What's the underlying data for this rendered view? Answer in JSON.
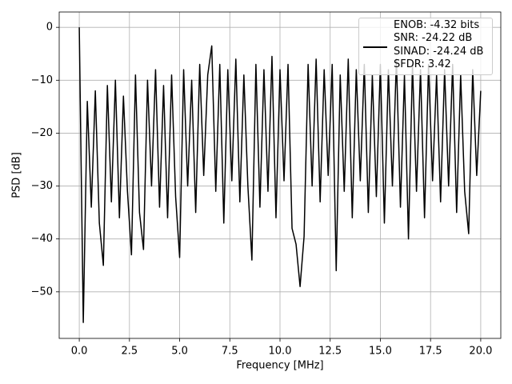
{
  "chart_data": {
    "type": "line",
    "x_label": "Frequency [MHz]",
    "y_label": "PSD [dB]",
    "xlim": [
      -1.0,
      21.0
    ],
    "ylim": [
      -58.8,
      2.9
    ],
    "xticks": [
      {
        "value": 0,
        "label": "0.0"
      },
      2.5,
      {
        "value": 5,
        "label": "5.0"
      },
      7.5,
      {
        "value": 10,
        "label": "10.0"
      },
      12.5,
      {
        "value": 15,
        "label": "15.0"
      },
      17.5,
      {
        "value": 20,
        "label": "20.0"
      }
    ],
    "yticks": [
      {
        "value": 0,
        "label": "0"
      },
      {
        "value": -10,
        "label": "−10"
      },
      {
        "value": -20,
        "label": "−20"
      },
      {
        "value": -30,
        "label": "−30"
      },
      {
        "value": -40,
        "label": "−40"
      },
      {
        "value": -50,
        "label": "−50"
      }
    ],
    "grid": true,
    "legend": "upper right",
    "x": [
      0,
      0.2,
      0.4,
      0.6,
      0.8,
      1.0,
      1.2,
      1.4,
      1.6,
      1.8,
      2.0,
      2.2,
      2.4,
      2.6,
      2.8,
      3.0,
      3.2,
      3.4,
      3.6,
      3.8,
      4.0,
      4.2,
      4.4,
      4.6,
      4.8,
      5.0,
      5.2,
      5.4,
      5.6,
      5.8,
      6.0,
      6.2,
      6.4,
      6.6,
      6.8,
      7.0,
      7.2,
      7.4,
      7.6,
      7.8,
      8.0,
      8.2,
      8.4,
      8.6,
      8.8,
      9.0,
      9.2,
      9.4,
      9.6,
      9.8,
      10.0,
      10.2,
      10.4,
      10.6,
      10.8,
      11.0,
      11.2,
      11.4,
      11.6,
      11.8,
      12.0,
      12.2,
      12.4,
      12.6,
      12.8,
      13.0,
      13.2,
      13.4,
      13.6,
      13.8,
      14.0,
      14.2,
      14.4,
      14.6,
      14.8,
      15.0,
      15.2,
      15.4,
      15.6,
      15.8,
      16.0,
      16.2,
      16.4,
      16.6,
      16.8,
      17.0,
      17.2,
      17.4,
      17.6,
      17.8,
      18.0,
      18.2,
      18.4,
      18.6,
      18.8,
      19.0,
      19.2,
      19.4,
      19.6,
      19.8,
      20.0
    ],
    "series": [
      {
        "name": "ENOB: -4.32 bits\nSNR: -24.22 dB\nSINAD: -24.24 dB\nSFDR: 3.42",
        "color": "#000000",
        "values": [
          0,
          -55.8,
          -14,
          -34,
          -12,
          -37,
          -45,
          -11,
          -33,
          -10,
          -36,
          -13,
          -31,
          -43,
          -9,
          -35,
          -42,
          -10,
          -30,
          -8,
          -34,
          -11,
          -36,
          -9,
          -32,
          -43.5,
          -8,
          -30,
          -10,
          -35,
          -7,
          -28,
          -9,
          -3.5,
          -31,
          -7,
          -37,
          -8,
          -29,
          -6,
          -33,
          -9,
          -30,
          -44,
          -7,
          -34,
          -8,
          -31,
          -5.5,
          -36,
          -8,
          -29,
          -7,
          -38,
          -41,
          -49,
          -39.5,
          -7,
          -30,
          -6,
          -33,
          -8,
          -28,
          -7,
          -46,
          -9,
          -31,
          -6,
          -36,
          -8,
          -29,
          -7,
          -35,
          -9,
          -32,
          -7,
          -37,
          -8,
          -30,
          -6,
          -34,
          -9,
          -40,
          -7,
          -31,
          -8,
          -36,
          -7,
          -29,
          -9,
          -33,
          -8,
          -30,
          -7,
          -35,
          -9,
          -31,
          -39,
          -8,
          -28,
          -12
        ]
      }
    ]
  }
}
